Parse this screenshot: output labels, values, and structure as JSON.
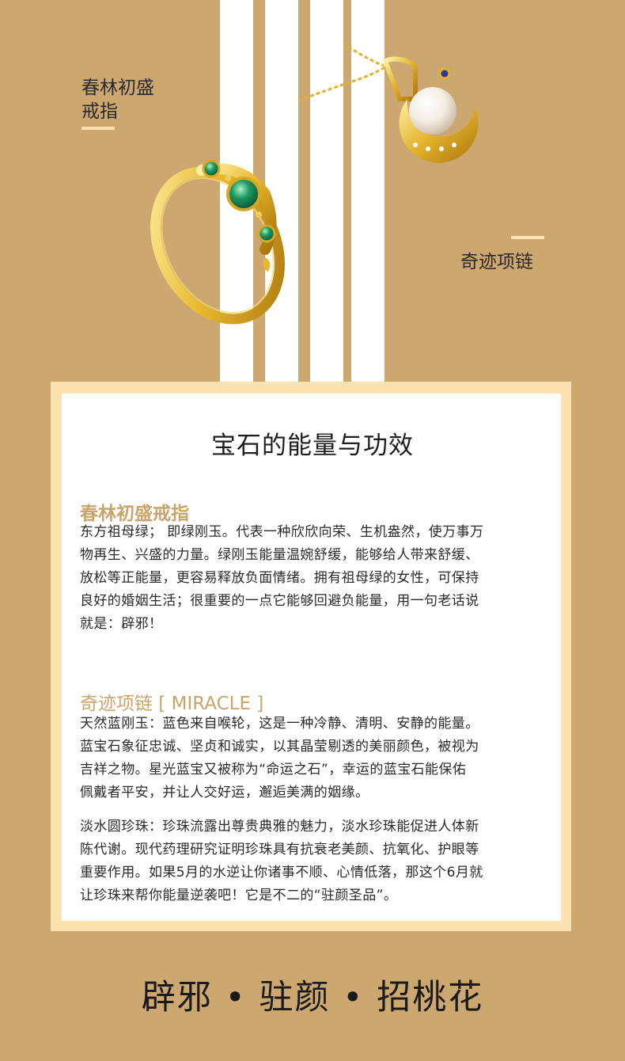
{
  "products": {
    "ring_label": [
      "春林初盛",
      "戒指"
    ],
    "necklace_label": "奇迹项链"
  },
  "card": {
    "title": "宝石的能量与功效",
    "ring_section": {
      "title": "春林初盛戒指",
      "lines": [
        "东方祖母绿； 即绿刚玉。代表一种欣欣向荣、生机盎然，使万事万",
        "物再生、兴盛的力量。绿刚玉能量温婉舒缓，能够给人带来舒缓、",
        "放松等正能量，更容易释放负面情绪。拥有祖母绿的女性，可保持",
        "良好的婚姻生活；很重要的一点它能够回避负能量，用一句老话说",
        "就是：辟邪！"
      ]
    },
    "necklace_section": {
      "title": "奇迹项链 [ MIRACLE ]",
      "sapphire_lines": [
        "天然蓝刚玉：蓝色来自喉轮，这是一种冷静、清明、安静的能量。",
        "蓝宝石象征忠诚、坚贞和诚实，以其晶莹剔透的美丽颜色，被视为",
        "吉祥之物。星光蓝宝又被称为“命运之石”，幸运的蓝宝石能保佑",
        "佩戴者平安，并让人交好运，邂逅美满的姻缘。"
      ],
      "pearl_lines": [
        "淡水圆珍珠：珍珠流露出尊贵典雅的魅力，淡水珍珠能促进人体新",
        "陈代谢。现代药理研究证明珍珠具有抗衰老美颜、抗氧化、护眼等",
        "重要作用。如果5月的水逆让你诸事不顺、心情低落，那这个6月就",
        "让珍珠来帮你能量逆袭吧！它是不二的“驻颜圣品”。"
      ]
    }
  },
  "slogan": "辟邪 • 驻颜 • 招桃花",
  "colors": {
    "background": "#cda770",
    "frame": "#fbe2b0",
    "accent_text": "#c9a46b",
    "stripe": "#ffffff"
  },
  "icons": [
    "emerald-ring-image",
    "pearl-necklace-image"
  ]
}
